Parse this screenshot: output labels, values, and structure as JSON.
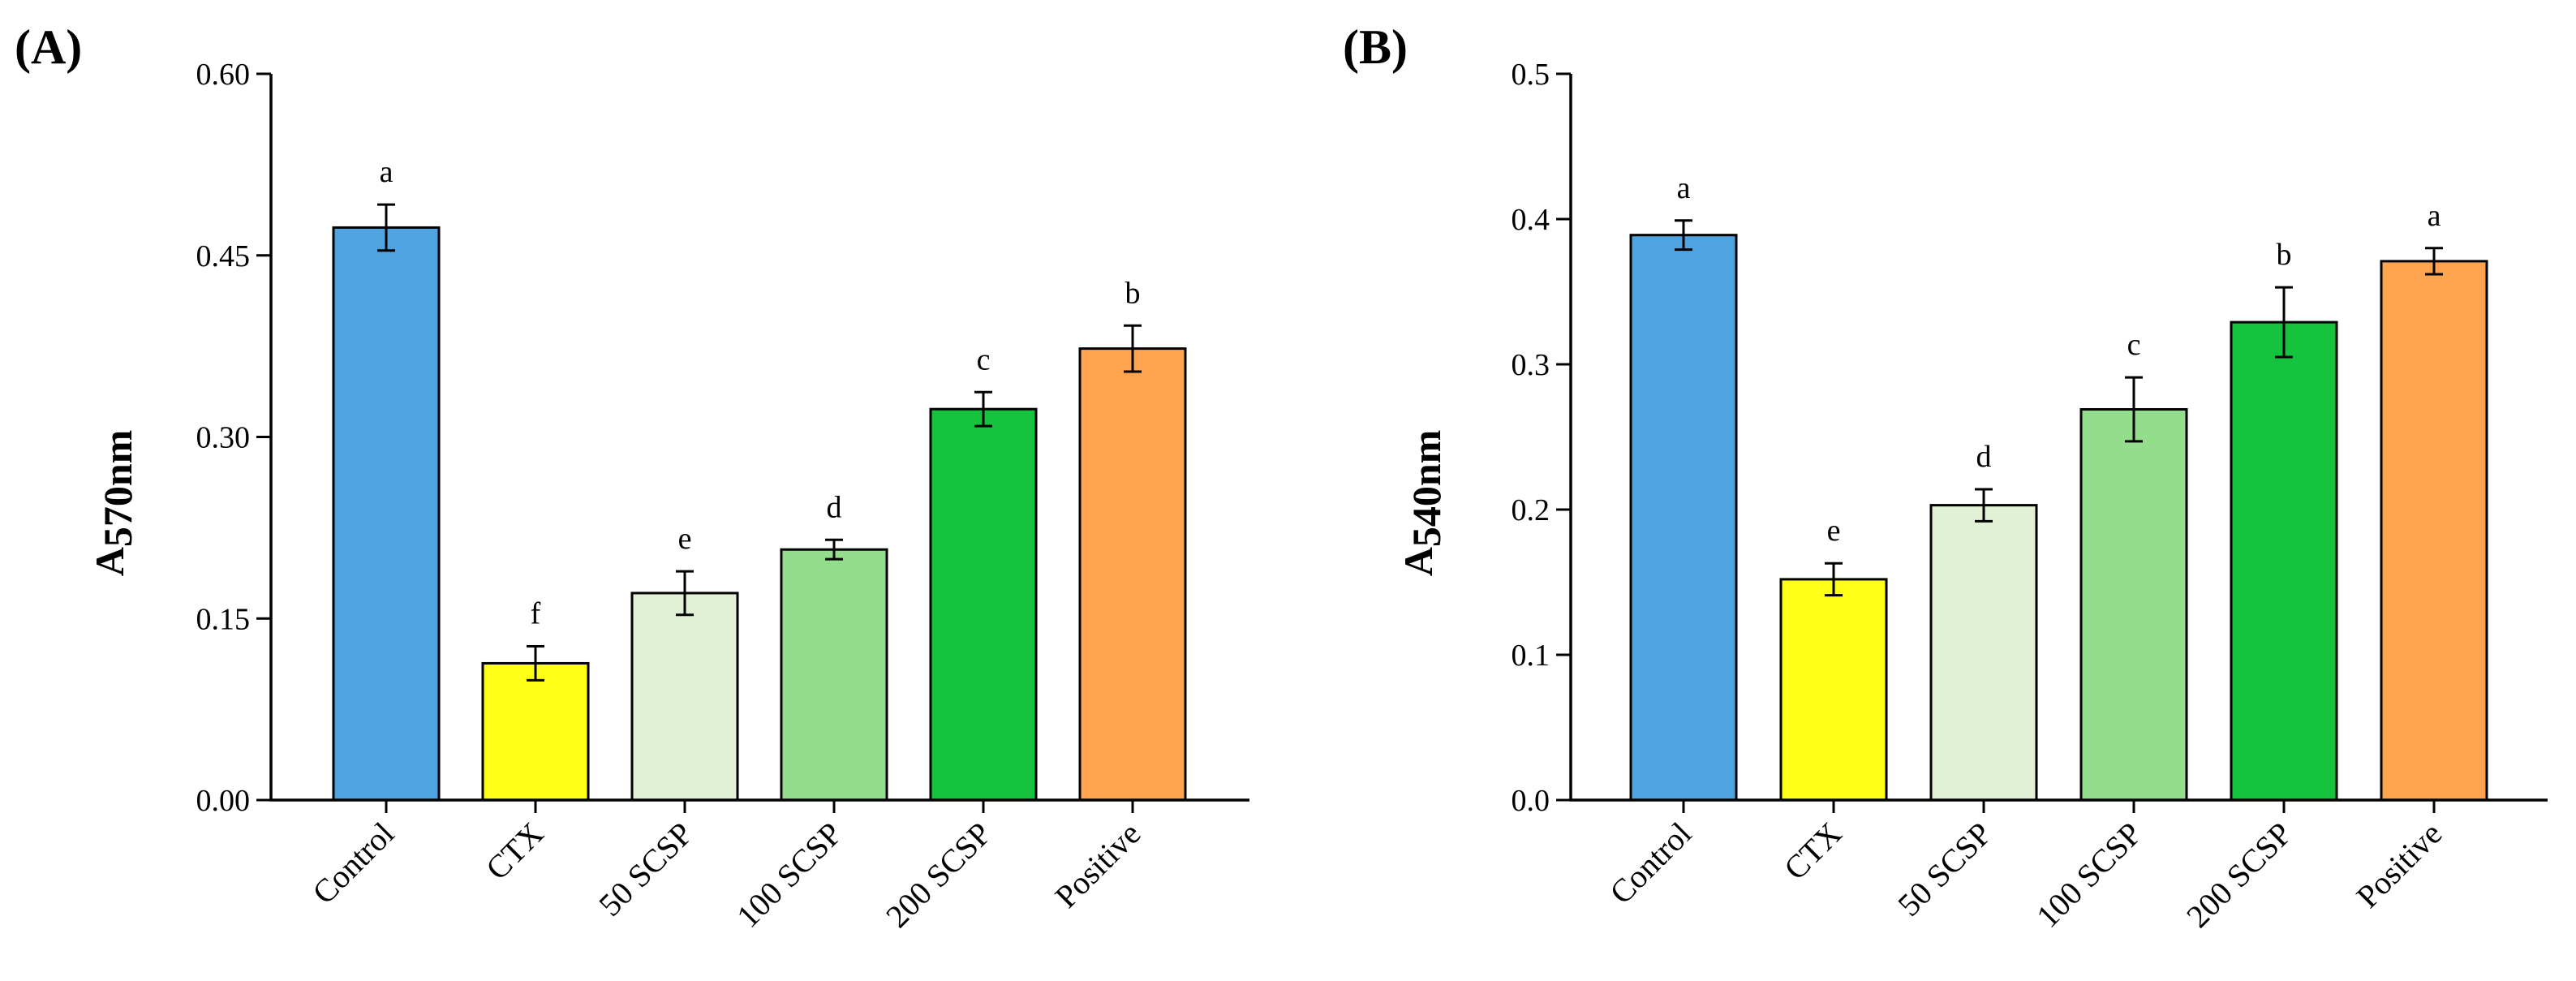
{
  "chart_data": [
    {
      "type": "bar",
      "panel_label": "(A)",
      "ylabel_main": "A",
      "ylabel_sub": "570nm",
      "ylim": [
        0,
        0.6
      ],
      "yticks": [
        "0.00",
        "0.15",
        "0.30",
        "0.45",
        "0.60"
      ],
      "categories": [
        "Control",
        "CTX",
        "50 SCSP",
        "100 SCSP",
        "200 SCSP",
        "Positive"
      ],
      "values": [
        0.473,
        0.113,
        0.171,
        0.207,
        0.323,
        0.373
      ],
      "errors": [
        0.019,
        0.014,
        0.018,
        0.008,
        0.014,
        0.019
      ],
      "letters": [
        "a",
        "f",
        "e",
        "d",
        "c",
        "b"
      ],
      "colors": [
        "#4FA3E0",
        "#FFFF17",
        "#E2F1D6",
        "#93DD8C",
        "#15C33E",
        "#FFA54F"
      ]
    },
    {
      "type": "bar",
      "panel_label": "(B)",
      "ylabel_main": "A",
      "ylabel_sub": "540nm",
      "ylim": [
        0,
        0.5
      ],
      "yticks": [
        "0.0",
        "0.1",
        "0.2",
        "0.3",
        "0.4",
        "0.5"
      ],
      "categories": [
        "Control",
        "CTX",
        "50 SCSP",
        "100 SCSP",
        "200 SCSP",
        "Positive"
      ],
      "values": [
        0.389,
        0.152,
        0.203,
        0.269,
        0.329,
        0.371
      ],
      "errors": [
        0.01,
        0.011,
        0.011,
        0.022,
        0.024,
        0.009
      ],
      "letters": [
        "a",
        "e",
        "d",
        "c",
        "b",
        "a"
      ],
      "colors": [
        "#4FA3E0",
        "#FFFF17",
        "#E2F1D6",
        "#93DD8C",
        "#15C33E",
        "#FFA54F"
      ]
    }
  ]
}
